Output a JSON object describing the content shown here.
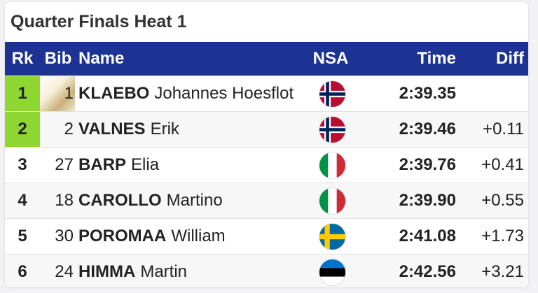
{
  "title": "Quarter Finals Heat 1",
  "columns": {
    "rank": "Rk",
    "bib": "Bib",
    "name": "Name",
    "nsa": "NSA",
    "time": "Time",
    "diff": "Diff"
  },
  "colors": {
    "header_bg": "#1c3393",
    "qualified_rank_bg": "#8ed630"
  },
  "rows": [
    {
      "rank": "1",
      "bib": "1",
      "surname": "KLAEBO",
      "given": "Johannes Hoesflot",
      "nsa_flag": "norway-flag-icon",
      "time": "2:39.35",
      "diff": "",
      "qualified": true,
      "bib_highlight": true
    },
    {
      "rank": "2",
      "bib": "2",
      "surname": "VALNES",
      "given": "Erik",
      "nsa_flag": "norway-flag-icon",
      "time": "2:39.46",
      "diff": "+0.11",
      "qualified": true,
      "bib_highlight": false
    },
    {
      "rank": "3",
      "bib": "27",
      "surname": "BARP",
      "given": "Elia",
      "nsa_flag": "italy-flag-icon",
      "time": "2:39.76",
      "diff": "+0.41",
      "qualified": false,
      "bib_highlight": false
    },
    {
      "rank": "4",
      "bib": "18",
      "surname": "CAROLLO",
      "given": "Martino",
      "nsa_flag": "italy-flag-icon",
      "time": "2:39.90",
      "diff": "+0.55",
      "qualified": false,
      "bib_highlight": false
    },
    {
      "rank": "5",
      "bib": "30",
      "surname": "POROMAA",
      "given": "William",
      "nsa_flag": "sweden-flag-icon",
      "time": "2:41.08",
      "diff": "+1.73",
      "qualified": false,
      "bib_highlight": false
    },
    {
      "rank": "6",
      "bib": "24",
      "surname": "HIMMA",
      "given": "Martin",
      "nsa_flag": "estonia-flag-icon",
      "time": "2:42.56",
      "diff": "+3.21",
      "qualified": false,
      "bib_highlight": false
    }
  ]
}
